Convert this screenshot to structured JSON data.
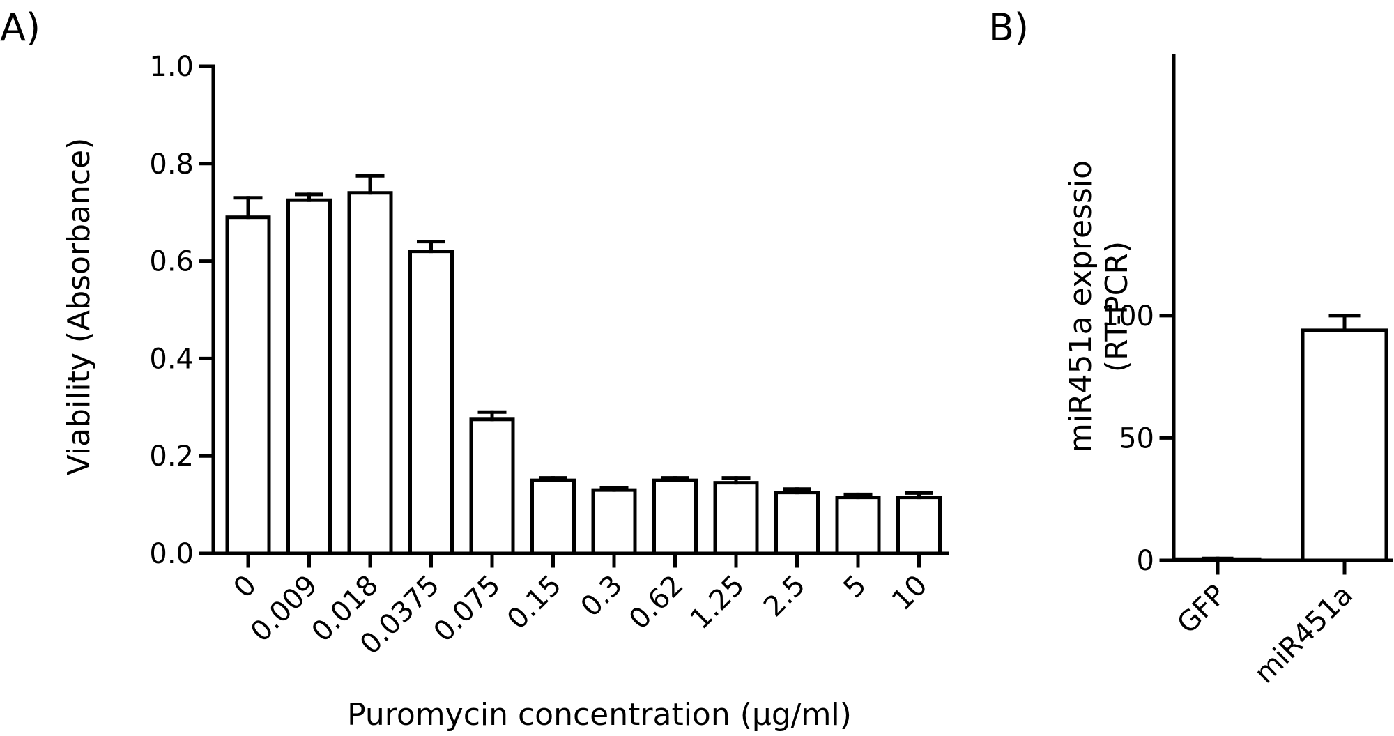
{
  "figure": {
    "panel_a_label": "A)",
    "panel_b_label": "B)"
  },
  "chart_data": [
    {
      "type": "bar",
      "panel": "A)",
      "title": "",
      "xlabel": "Puromycin concentration (µg/ml)",
      "ylabel": "Viability (Absorbance)",
      "ylim": [
        0,
        1.0
      ],
      "yticks": [
        0.0,
        0.2,
        0.4,
        0.6,
        0.8,
        1.0
      ],
      "ytick_labels": [
        "0.0",
        "0.2",
        "0.4",
        "0.6",
        "0.8",
        "1.0"
      ],
      "categories": [
        "0",
        "0.009",
        "0.018",
        "0.0375",
        "0.075",
        "0.15",
        "0.3",
        "0.62",
        "1.25",
        "2.5",
        "5",
        "10"
      ],
      "values": [
        0.69,
        0.725,
        0.74,
        0.62,
        0.275,
        0.15,
        0.13,
        0.15,
        0.145,
        0.125,
        0.115,
        0.115
      ],
      "errors": [
        0.04,
        0.012,
        0.035,
        0.02,
        0.015,
        0.005,
        0.005,
        0.005,
        0.01,
        0.007,
        0.006,
        0.009
      ],
      "error_bars": "upper only",
      "bar_fill": "#ffffff",
      "bar_stroke": "#000000",
      "grid": false,
      "legend": "none"
    },
    {
      "type": "bar",
      "panel": "B)",
      "title": "",
      "xlabel": "",
      "ylabel": "miR451a expressio",
      "ylabel_line2": "(RT-PCR)",
      "ylim": [
        0,
        120
      ],
      "yticks": [
        0,
        50,
        100
      ],
      "ytick_labels": [
        "0",
        "50",
        "100"
      ],
      "categories": [
        "GFP",
        "miR451a"
      ],
      "values": [
        0.5,
        94
      ],
      "errors": [
        0.3,
        6
      ],
      "error_bars": "upper only",
      "bar_fill": "#ffffff",
      "bar_stroke": "#000000",
      "grid": false,
      "legend": "none"
    }
  ]
}
